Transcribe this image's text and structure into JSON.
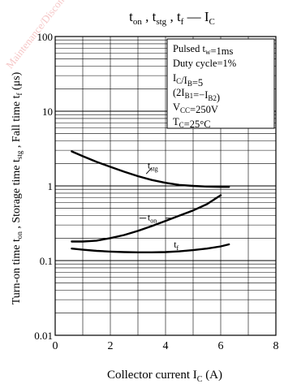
{
  "watermark": "Maintenance/Discontinued Maintenance",
  "chart_data": {
    "type": "line",
    "title": "ton , tstg , tf — IC",
    "title_parts": {
      "t": "t",
      "on": "on",
      "stg": "stg",
      "f": "f",
      "sep": " , ",
      "dash": " — I",
      "c": "C"
    },
    "xlabel": "Collector current  I",
    "xlabel_sub": "C",
    "xlabel_unit": "  (A)",
    "ylabel_parts": [
      "Turn-on time t",
      "on",
      " , Storage time t",
      "stg",
      " , Fall time t",
      "f",
      "  (μs)"
    ],
    "xlim": [
      0,
      8
    ],
    "ylim": [
      0.01,
      100
    ],
    "y_scale": "log",
    "grid": true,
    "x_ticks": [
      "0",
      "2",
      "4",
      "6",
      "8"
    ],
    "y_ticks": [
      "0.01",
      "0.1",
      "1",
      "10",
      "100"
    ],
    "conditions": [
      {
        "text": "Pulsed t",
        "sub": "w",
        "rest": "=1ms"
      },
      {
        "text": "Duty cycle=1%",
        "sub": "",
        "rest": ""
      },
      {
        "text": "I",
        "sub": "C",
        "rest": "/I",
        "sub2": "B",
        "rest2": "=5"
      },
      {
        "text": "(2I",
        "sub": "B1",
        "rest": "=−I",
        "sub2": "B2",
        "rest2": ")"
      },
      {
        "text": "V",
        "sub": "CC",
        "rest": "=250V"
      },
      {
        "text": "T",
        "sub": "C",
        "rest": "=25°C"
      }
    ],
    "series": [
      {
        "name": "tstg",
        "label": "t",
        "label_sub": "stg",
        "x": [
          0.6,
          1.0,
          1.5,
          2.0,
          2.5,
          3.0,
          3.5,
          4.0,
          4.5,
          5.0,
          5.5,
          6.0,
          6.3
        ],
        "y": [
          2.9,
          2.5,
          2.1,
          1.8,
          1.55,
          1.35,
          1.2,
          1.1,
          1.03,
          1.0,
          0.98,
          0.97,
          0.97
        ]
      },
      {
        "name": "ton",
        "label": "t",
        "label_sub": "on",
        "x": [
          0.6,
          1.0,
          1.5,
          2.0,
          2.5,
          3.0,
          3.5,
          4.0,
          4.5,
          5.0,
          5.5,
          6.0
        ],
        "y": [
          0.18,
          0.18,
          0.185,
          0.2,
          0.22,
          0.25,
          0.29,
          0.34,
          0.4,
          0.47,
          0.57,
          0.75
        ]
      },
      {
        "name": "tf",
        "label": "t",
        "label_sub": "f",
        "x": [
          0.6,
          1.0,
          1.5,
          2.0,
          2.5,
          3.0,
          3.5,
          4.0,
          4.5,
          5.0,
          5.5,
          6.0,
          6.3
        ],
        "y": [
          0.145,
          0.14,
          0.135,
          0.132,
          0.13,
          0.129,
          0.129,
          0.13,
          0.133,
          0.138,
          0.145,
          0.155,
          0.165
        ]
      }
    ]
  }
}
